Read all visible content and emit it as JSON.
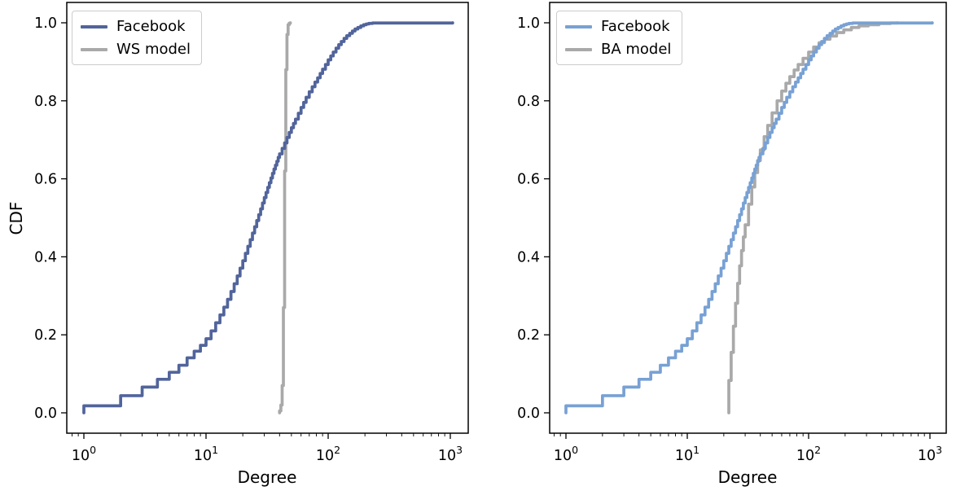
{
  "chart_data": [
    {
      "type": "line",
      "title": "",
      "xlabel": "Degree",
      "ylabel": "CDF",
      "xscale": "log",
      "xlim": [
        1,
        1045
      ],
      "ylim": [
        0.0,
        1.0
      ],
      "grid": false,
      "legend_position": "upper left",
      "x_tick_base": "10",
      "x_tick_exponents": [
        "0",
        "1",
        "2",
        "3"
      ],
      "x_ticks": [
        1,
        10,
        100,
        1000
      ],
      "y_ticks": [
        0.0,
        0.2,
        0.4,
        0.6,
        0.8,
        1.0
      ],
      "y_tick_labels": [
        "0.0",
        "0.2",
        "0.4",
        "0.6",
        "0.8",
        "1.0"
      ],
      "series": [
        {
          "name": "Facebook",
          "color": "#51649b",
          "drawstyle": "steps-post",
          "points": [
            [
              1,
              0
            ],
            [
              1,
              0.018
            ],
            [
              2,
              0.044
            ],
            [
              3,
              0.066
            ],
            [
              4,
              0.086
            ],
            [
              5,
              0.104
            ],
            [
              6,
              0.122
            ],
            [
              7,
              0.141
            ],
            [
              8,
              0.158
            ],
            [
              9,
              0.173
            ],
            [
              10,
              0.19
            ],
            [
              11,
              0.21
            ],
            [
              12,
              0.231
            ],
            [
              13,
              0.251
            ],
            [
              14,
              0.271
            ],
            [
              15,
              0.291
            ],
            [
              16,
              0.311
            ],
            [
              17,
              0.331
            ],
            [
              18,
              0.351
            ],
            [
              19,
              0.371
            ],
            [
              20,
              0.39
            ],
            [
              21,
              0.409
            ],
            [
              22,
              0.427
            ],
            [
              23,
              0.444
            ],
            [
              24,
              0.461
            ],
            [
              25,
              0.477
            ],
            [
              26,
              0.493
            ],
            [
              27,
              0.508
            ],
            [
              28,
              0.523
            ],
            [
              29,
              0.538
            ],
            [
              30,
              0.552
            ],
            [
              31,
              0.565
            ],
            [
              32,
              0.578
            ],
            [
              33,
              0.59
            ],
            [
              34,
              0.602
            ],
            [
              35,
              0.614
            ],
            [
              36,
              0.625
            ],
            [
              37,
              0.635
            ],
            [
              38,
              0.645
            ],
            [
              39,
              0.655
            ],
            [
              40,
              0.664
            ],
            [
              42,
              0.678
            ],
            [
              44,
              0.692
            ],
            [
              46,
              0.706
            ],
            [
              48,
              0.719
            ],
            [
              50,
              0.731
            ],
            [
              52,
              0.742
            ],
            [
              54,
              0.753
            ],
            [
              57,
              0.768
            ],
            [
              60,
              0.783
            ],
            [
              63,
              0.796
            ],
            [
              66,
              0.809
            ],
            [
              70,
              0.823
            ],
            [
              74,
              0.836
            ],
            [
              78,
              0.848
            ],
            [
              82,
              0.859
            ],
            [
              86,
              0.87
            ],
            [
              90,
              0.881
            ],
            [
              95,
              0.893
            ],
            [
              100,
              0.905
            ],
            [
              105,
              0.915
            ],
            [
              110,
              0.925
            ],
            [
              116,
              0.935
            ],
            [
              122,
              0.944
            ],
            [
              128,
              0.952
            ],
            [
              135,
              0.96
            ],
            [
              142,
              0.967
            ],
            [
              150,
              0.973
            ],
            [
              158,
              0.979
            ],
            [
              166,
              0.984
            ],
            [
              175,
              0.988
            ],
            [
              185,
              0.992
            ],
            [
              195,
              0.995
            ],
            [
              205,
              0.997
            ],
            [
              215,
              0.9985
            ],
            [
              231,
              0.9995
            ],
            [
              1045,
              1
            ]
          ]
        },
        {
          "name": "WS model",
          "color": "#a9a9a9",
          "drawstyle": "steps-post",
          "points": [
            [
              40,
              0
            ],
            [
              40,
              0.005
            ],
            [
              41,
              0.02
            ],
            [
              42,
              0.07
            ],
            [
              43,
              0.27
            ],
            [
              44,
              0.62
            ],
            [
              45,
              0.88
            ],
            [
              46,
              0.97
            ],
            [
              47,
              0.995
            ],
            [
              48,
              0.999
            ],
            [
              49,
              1
            ]
          ]
        }
      ]
    },
    {
      "type": "line",
      "title": "",
      "xlabel": "Degree",
      "ylabel": "",
      "xscale": "log",
      "xlim": [
        1,
        1045
      ],
      "ylim": [
        0.0,
        1.0
      ],
      "grid": false,
      "legend_position": "upper left",
      "x_tick_base": "10",
      "x_tick_exponents": [
        "0",
        "1",
        "2",
        "3"
      ],
      "x_ticks": [
        1,
        10,
        100,
        1000
      ],
      "y_ticks": [
        0.0,
        0.2,
        0.4,
        0.6,
        0.8,
        1.0
      ],
      "y_tick_labels": [
        "0.0",
        "0.2",
        "0.4",
        "0.6",
        "0.8",
        "1.0"
      ],
      "series": [
        {
          "name": "Facebook",
          "color": "#78a1d4",
          "drawstyle": "steps-post",
          "points": [
            [
              1,
              0
            ],
            [
              1,
              0.018
            ],
            [
              2,
              0.044
            ],
            [
              3,
              0.066
            ],
            [
              4,
              0.086
            ],
            [
              5,
              0.104
            ],
            [
              6,
              0.122
            ],
            [
              7,
              0.141
            ],
            [
              8,
              0.158
            ],
            [
              9,
              0.173
            ],
            [
              10,
              0.19
            ],
            [
              11,
              0.21
            ],
            [
              12,
              0.231
            ],
            [
              13,
              0.251
            ],
            [
              14,
              0.271
            ],
            [
              15,
              0.291
            ],
            [
              16,
              0.311
            ],
            [
              17,
              0.331
            ],
            [
              18,
              0.351
            ],
            [
              19,
              0.371
            ],
            [
              20,
              0.39
            ],
            [
              21,
              0.409
            ],
            [
              22,
              0.427
            ],
            [
              23,
              0.444
            ],
            [
              24,
              0.461
            ],
            [
              25,
              0.477
            ],
            [
              26,
              0.493
            ],
            [
              27,
              0.508
            ],
            [
              28,
              0.523
            ],
            [
              29,
              0.538
            ],
            [
              30,
              0.552
            ],
            [
              31,
              0.565
            ],
            [
              32,
              0.578
            ],
            [
              33,
              0.59
            ],
            [
              34,
              0.602
            ],
            [
              35,
              0.614
            ],
            [
              36,
              0.625
            ],
            [
              37,
              0.635
            ],
            [
              38,
              0.645
            ],
            [
              39,
              0.655
            ],
            [
              40,
              0.664
            ],
            [
              42,
              0.678
            ],
            [
              44,
              0.692
            ],
            [
              46,
              0.706
            ],
            [
              48,
              0.719
            ],
            [
              50,
              0.731
            ],
            [
              52,
              0.742
            ],
            [
              54,
              0.753
            ],
            [
              57,
              0.768
            ],
            [
              60,
              0.783
            ],
            [
              63,
              0.796
            ],
            [
              66,
              0.809
            ],
            [
              70,
              0.823
            ],
            [
              74,
              0.836
            ],
            [
              78,
              0.848
            ],
            [
              82,
              0.859
            ],
            [
              86,
              0.87
            ],
            [
              90,
              0.881
            ],
            [
              95,
              0.893
            ],
            [
              100,
              0.905
            ],
            [
              105,
              0.915
            ],
            [
              110,
              0.925
            ],
            [
              116,
              0.935
            ],
            [
              122,
              0.944
            ],
            [
              128,
              0.952
            ],
            [
              135,
              0.96
            ],
            [
              142,
              0.967
            ],
            [
              150,
              0.973
            ],
            [
              158,
              0.979
            ],
            [
              166,
              0.984
            ],
            [
              175,
              0.988
            ],
            [
              185,
              0.992
            ],
            [
              195,
              0.995
            ],
            [
              205,
              0.997
            ],
            [
              215,
              0.9985
            ],
            [
              231,
              0.9995
            ],
            [
              1045,
              1
            ]
          ]
        },
        {
          "name": "BA model",
          "color": "#a9a9a9",
          "drawstyle": "steps-post",
          "points": [
            [
              22,
              0
            ],
            [
              22,
              0.083
            ],
            [
              23,
              0.155
            ],
            [
              24,
              0.222
            ],
            [
              25,
              0.281
            ],
            [
              26,
              0.332
            ],
            [
              27,
              0.377
            ],
            [
              28,
              0.416
            ],
            [
              29,
              0.451
            ],
            [
              30,
              0.482
            ],
            [
              32,
              0.535
            ],
            [
              34,
              0.579
            ],
            [
              36,
              0.616
            ],
            [
              38,
              0.647
            ],
            [
              40,
              0.674
            ],
            [
              43,
              0.708
            ],
            [
              46,
              0.737
            ],
            [
              50,
              0.769
            ],
            [
              55,
              0.8
            ],
            [
              60,
              0.825
            ],
            [
              65,
              0.845
            ],
            [
              70,
              0.862
            ],
            [
              76,
              0.879
            ],
            [
              82,
              0.893
            ],
            [
              90,
              0.909
            ],
            [
              100,
              0.925
            ],
            [
              110,
              0.938
            ],
            [
              122,
              0.949
            ],
            [
              135,
              0.958
            ],
            [
              150,
              0.966
            ],
            [
              170,
              0.975
            ],
            [
              195,
              0.982
            ],
            [
              225,
              0.988
            ],
            [
              260,
              0.992
            ],
            [
              310,
              0.995
            ],
            [
              380,
              0.998
            ],
            [
              470,
              0.9995
            ],
            [
              540,
              1
            ]
          ]
        }
      ]
    }
  ]
}
